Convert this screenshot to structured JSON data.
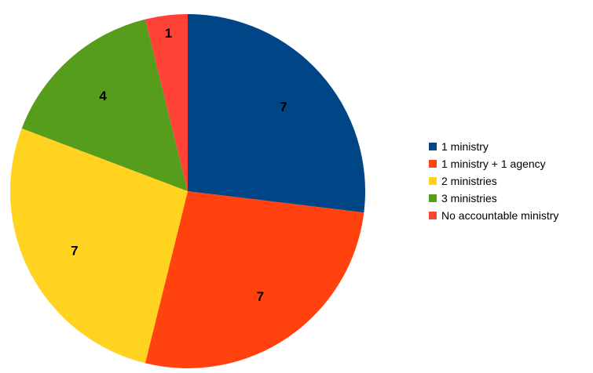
{
  "chart_data": {
    "type": "pie",
    "title": "",
    "legend_position": "right",
    "slices": [
      {
        "label": "1 ministry",
        "value": 7,
        "color": "#004586"
      },
      {
        "label": "1 ministry + 1 agency",
        "value": 7,
        "color": "#ff420e"
      },
      {
        "label": "2 ministries",
        "value": 7,
        "color": "#ffd320"
      },
      {
        "label": "3 ministries",
        "value": 4,
        "color": "#579d1c"
      },
      {
        "label": "No accountable ministry",
        "value": 1,
        "color": "#ff4136"
      }
    ]
  }
}
